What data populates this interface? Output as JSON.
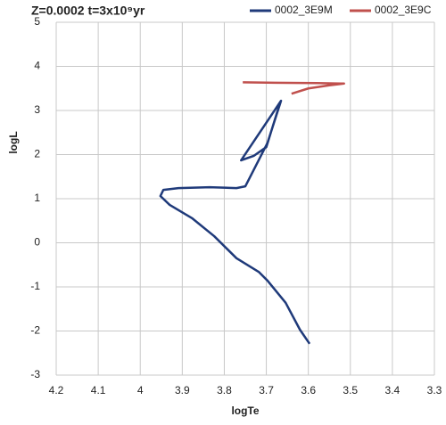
{
  "chart_data": {
    "type": "line",
    "title": "Z=0.0002 t=3x10⁹yr",
    "x_label": "logTe",
    "y_label": "logL",
    "xlim": [
      4.2,
      3.3
    ],
    "ylim": [
      -3,
      5
    ],
    "xticks": [
      4.2,
      4.1,
      4,
      3.9,
      3.8,
      3.7,
      3.6,
      3.5,
      3.4,
      3.3
    ],
    "yticks": [
      -3,
      -2,
      -1,
      0,
      1,
      2,
      3,
      4,
      5
    ],
    "grid": true,
    "legend": "top-right",
    "series": [
      {
        "name": "0002_3E9M",
        "color": "#1f3a7a",
        "x": [
          3.597,
          3.62,
          3.654,
          3.697,
          3.718,
          3.771,
          3.824,
          3.877,
          3.93,
          3.952,
          3.945,
          3.909,
          3.835,
          3.771,
          3.75,
          3.729,
          3.697,
          3.665,
          3.76,
          3.73,
          3.7,
          3.667
        ],
        "values": [
          -2.29,
          -1.97,
          -1.36,
          -0.86,
          -0.66,
          -0.35,
          0.15,
          0.56,
          0.86,
          1.06,
          1.2,
          1.24,
          1.26,
          1.24,
          1.28,
          1.67,
          2.27,
          3.22,
          1.87,
          1.97,
          2.17,
          3.18
        ]
      },
      {
        "name": "0002_3E9C",
        "color": "#c0504d",
        "x": [
          3.64,
          3.6,
          3.55,
          3.515,
          3.58,
          3.68,
          3.756
        ],
        "values": [
          3.38,
          3.5,
          3.57,
          3.61,
          3.62,
          3.63,
          3.64
        ]
      }
    ]
  }
}
